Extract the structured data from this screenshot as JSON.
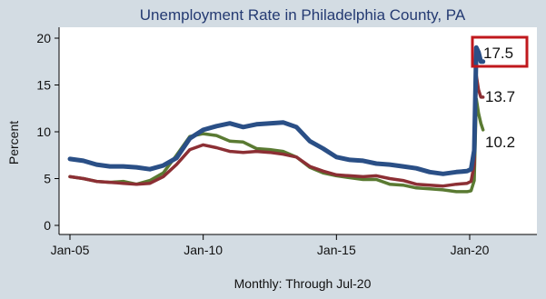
{
  "chart_data": {
    "type": "line",
    "title": "Unemployment Rate in Philadelphia County, PA",
    "ylabel": "Percent",
    "xlabel": "Monthly: Through Jul-20",
    "ylim": [
      0,
      20
    ],
    "yticks": [
      0,
      5,
      10,
      15,
      20
    ],
    "xlim": [
      2004.7,
      2021.5
    ],
    "xticks": [
      {
        "value": 2005,
        "label": "Jan-05"
      },
      {
        "value": 2010,
        "label": "Jan-10"
      },
      {
        "value": 2015,
        "label": "Jan-15"
      },
      {
        "value": 2020,
        "label": "Jan-20"
      }
    ],
    "grid": false,
    "end_labels": [
      "17.5",
      "13.7",
      "10.2"
    ],
    "highlighted_label": "17.5",
    "series": [
      {
        "color": "#2a4f86",
        "points": [
          [
            2005.0,
            7.1
          ],
          [
            2005.5,
            6.9
          ],
          [
            2006.0,
            6.5
          ],
          [
            2006.5,
            6.3
          ],
          [
            2007.0,
            6.3
          ],
          [
            2007.5,
            6.2
          ],
          [
            2008.0,
            6.0
          ],
          [
            2008.5,
            6.4
          ],
          [
            2009.0,
            7.2
          ],
          [
            2009.5,
            9.3
          ],
          [
            2010.0,
            10.2
          ],
          [
            2010.5,
            10.6
          ],
          [
            2011.0,
            10.9
          ],
          [
            2011.5,
            10.5
          ],
          [
            2012.0,
            10.8
          ],
          [
            2012.5,
            10.9
          ],
          [
            2013.0,
            11.0
          ],
          [
            2013.5,
            10.5
          ],
          [
            2014.0,
            9.0
          ],
          [
            2014.5,
            8.2
          ],
          [
            2015.0,
            7.3
          ],
          [
            2015.5,
            7.0
          ],
          [
            2016.0,
            6.9
          ],
          [
            2016.5,
            6.6
          ],
          [
            2017.0,
            6.5
          ],
          [
            2017.5,
            6.3
          ],
          [
            2018.0,
            6.1
          ],
          [
            2018.5,
            5.7
          ],
          [
            2019.0,
            5.5
          ],
          [
            2019.5,
            5.7
          ],
          [
            2019.9,
            5.8
          ],
          [
            2020.05,
            6.0
          ],
          [
            2020.17,
            8.0
          ],
          [
            2020.25,
            19.0
          ],
          [
            2020.33,
            18.5
          ],
          [
            2020.42,
            17.5
          ],
          [
            2020.5,
            17.5
          ]
        ]
      },
      {
        "color": "#8c2f34",
        "points": [
          [
            2005.0,
            5.2
          ],
          [
            2005.5,
            5.0
          ],
          [
            2006.0,
            4.7
          ],
          [
            2006.5,
            4.6
          ],
          [
            2007.0,
            4.5
          ],
          [
            2007.5,
            4.4
          ],
          [
            2008.0,
            4.5
          ],
          [
            2008.5,
            5.2
          ],
          [
            2009.0,
            6.5
          ],
          [
            2009.5,
            8.1
          ],
          [
            2010.0,
            8.6
          ],
          [
            2010.5,
            8.3
          ],
          [
            2011.0,
            7.9
          ],
          [
            2011.5,
            7.8
          ],
          [
            2012.0,
            7.9
          ],
          [
            2012.5,
            7.8
          ],
          [
            2013.0,
            7.6
          ],
          [
            2013.5,
            7.3
          ],
          [
            2014.0,
            6.3
          ],
          [
            2014.5,
            5.8
          ],
          [
            2015.0,
            5.4
          ],
          [
            2015.5,
            5.3
          ],
          [
            2016.0,
            5.2
          ],
          [
            2016.5,
            5.3
          ],
          [
            2017.0,
            5.0
          ],
          [
            2017.5,
            4.8
          ],
          [
            2018.0,
            4.4
          ],
          [
            2018.5,
            4.3
          ],
          [
            2019.0,
            4.2
          ],
          [
            2019.5,
            4.4
          ],
          [
            2019.9,
            4.5
          ],
          [
            2020.05,
            4.7
          ],
          [
            2020.17,
            6.5
          ],
          [
            2020.25,
            16.0
          ],
          [
            2020.33,
            14.5
          ],
          [
            2020.42,
            13.7
          ],
          [
            2020.5,
            13.7
          ]
        ]
      },
      {
        "color": "#5a7a32",
        "points": [
          [
            2005.0,
            5.2
          ],
          [
            2005.5,
            5.0
          ],
          [
            2006.0,
            4.7
          ],
          [
            2006.5,
            4.6
          ],
          [
            2007.0,
            4.7
          ],
          [
            2007.5,
            4.4
          ],
          [
            2008.0,
            4.8
          ],
          [
            2008.5,
            5.6
          ],
          [
            2009.0,
            7.5
          ],
          [
            2009.5,
            9.5
          ],
          [
            2010.0,
            9.8
          ],
          [
            2010.5,
            9.6
          ],
          [
            2011.0,
            9.0
          ],
          [
            2011.5,
            8.9
          ],
          [
            2012.0,
            8.2
          ],
          [
            2012.5,
            8.1
          ],
          [
            2013.0,
            7.9
          ],
          [
            2013.5,
            7.3
          ],
          [
            2014.0,
            6.2
          ],
          [
            2014.5,
            5.6
          ],
          [
            2015.0,
            5.3
          ],
          [
            2015.5,
            5.1
          ],
          [
            2016.0,
            4.9
          ],
          [
            2016.5,
            4.9
          ],
          [
            2017.0,
            4.4
          ],
          [
            2017.5,
            4.3
          ],
          [
            2018.0,
            4.0
          ],
          [
            2018.5,
            3.9
          ],
          [
            2019.0,
            3.8
          ],
          [
            2019.5,
            3.6
          ],
          [
            2019.9,
            3.6
          ],
          [
            2020.05,
            3.7
          ],
          [
            2020.17,
            4.8
          ],
          [
            2020.25,
            13.5
          ],
          [
            2020.33,
            12.0
          ],
          [
            2020.42,
            10.9
          ],
          [
            2020.5,
            10.2
          ]
        ]
      }
    ]
  }
}
